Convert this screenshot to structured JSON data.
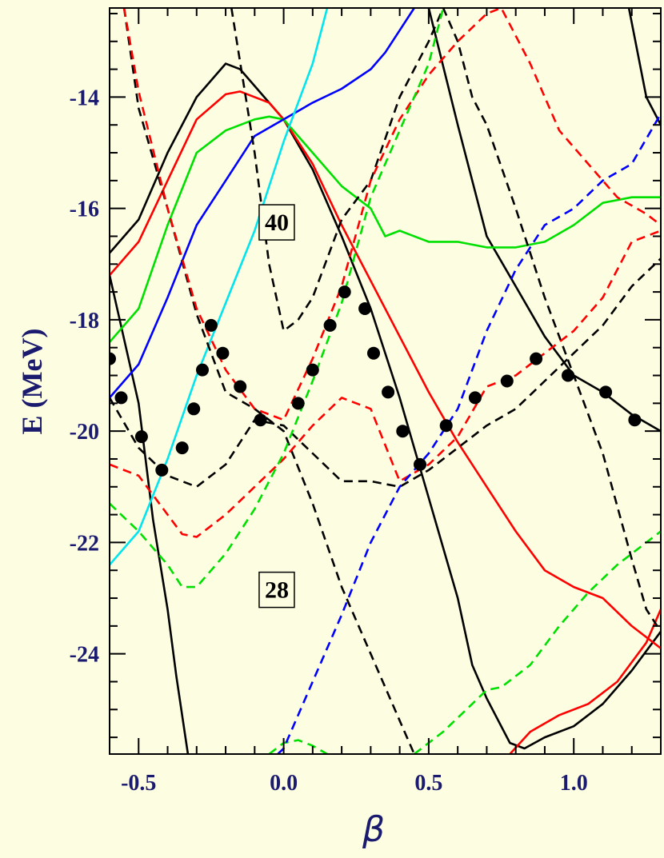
{
  "chart_data": {
    "type": "line",
    "title": "",
    "xlabel": "β",
    "ylabel": "E (MeV)",
    "xlim": [
      -0.6,
      1.3
    ],
    "ylim": [
      -25.8,
      -12.4
    ],
    "x_ticks": [
      -0.5,
      0.0,
      0.5,
      1.0
    ],
    "x_tick_labels": [
      "-0.5",
      "0.0",
      "0.5",
      "1.0"
    ],
    "y_ticks": [
      -14,
      -16,
      -18,
      -20,
      -22,
      -24
    ],
    "y_tick_labels": [
      "-14",
      "-16",
      "-18",
      "-20",
      "-22",
      "-24"
    ],
    "grid": false,
    "annotations": [
      {
        "text": "40",
        "x": -0.09,
        "y": -16.25
      },
      {
        "text": "28",
        "x": -0.09,
        "y": -22.85
      }
    ],
    "series": [
      {
        "color": "#000000",
        "dash": "solid",
        "points": [
          [
            -0.6,
            -16.8
          ],
          [
            -0.5,
            -16.2
          ],
          [
            -0.4,
            -15.0
          ],
          [
            -0.3,
            -14.0
          ],
          [
            -0.2,
            -13.4
          ],
          [
            -0.15,
            -13.5
          ],
          [
            -0.05,
            -14.1
          ],
          [
            0.0,
            -14.4
          ],
          [
            0.1,
            -15.3
          ],
          [
            0.2,
            -16.5
          ],
          [
            0.3,
            -17.8
          ],
          [
            0.4,
            -19.4
          ],
          [
            0.5,
            -21.2
          ],
          [
            0.6,
            -23.0
          ],
          [
            0.65,
            -24.2
          ],
          [
            0.7,
            -24.8
          ],
          [
            0.78,
            -25.6
          ],
          [
            0.83,
            -25.7
          ],
          [
            0.9,
            -25.5
          ],
          [
            1.0,
            -25.3
          ],
          [
            1.1,
            -24.9
          ],
          [
            1.2,
            -24.3
          ],
          [
            1.3,
            -23.6
          ]
        ]
      },
      {
        "color": "#000000",
        "dash": "solid",
        "points": [
          [
            -0.6,
            -17.2
          ],
          [
            -0.5,
            -19.5
          ],
          [
            -0.45,
            -21.6
          ],
          [
            -0.4,
            -23.2
          ],
          [
            -0.37,
            -24.4
          ],
          [
            -0.33,
            -25.8
          ]
        ]
      },
      {
        "color": "#000000",
        "dash": "solid",
        "points": [
          [
            0.5,
            -12.4
          ],
          [
            0.6,
            -14.5
          ],
          [
            0.7,
            -16.5
          ],
          [
            0.8,
            -17.4
          ],
          [
            0.9,
            -18.3
          ],
          [
            1.0,
            -19.0
          ],
          [
            1.1,
            -19.3
          ],
          [
            1.2,
            -19.7
          ],
          [
            1.3,
            -20.0
          ]
        ]
      },
      {
        "color": "#000000",
        "dash": "solid",
        "points": [
          [
            1.19,
            -12.4
          ],
          [
            1.25,
            -14.0
          ],
          [
            1.3,
            -14.5
          ]
        ]
      },
      {
        "color": "#ff0000",
        "dash": "solid",
        "points": [
          [
            -0.6,
            -17.2
          ],
          [
            -0.5,
            -16.6
          ],
          [
            -0.4,
            -15.5
          ],
          [
            -0.3,
            -14.4
          ],
          [
            -0.2,
            -13.95
          ],
          [
            -0.15,
            -13.9
          ],
          [
            -0.05,
            -14.1
          ],
          [
            0.0,
            -14.4
          ],
          [
            0.1,
            -15.2
          ],
          [
            0.2,
            -16.3
          ],
          [
            0.3,
            -17.3
          ],
          [
            0.4,
            -18.3
          ],
          [
            0.5,
            -19.3
          ],
          [
            0.6,
            -20.2
          ],
          [
            0.7,
            -21.0
          ],
          [
            0.8,
            -21.8
          ],
          [
            0.9,
            -22.5
          ],
          [
            1.0,
            -22.8
          ],
          [
            1.1,
            -23.0
          ],
          [
            1.2,
            -23.5
          ],
          [
            1.3,
            -23.9
          ]
        ]
      },
      {
        "color": "#ff0000",
        "dash": "solid",
        "points": [
          [
            0.78,
            -25.8
          ],
          [
            0.85,
            -25.4
          ],
          [
            0.95,
            -25.1
          ],
          [
            1.05,
            -24.9
          ],
          [
            1.15,
            -24.5
          ],
          [
            1.25,
            -23.8
          ],
          [
            1.3,
            -23.2
          ]
        ]
      },
      {
        "color": "#00e000",
        "dash": "solid",
        "points": [
          [
            -0.6,
            -18.4
          ],
          [
            -0.5,
            -17.8
          ],
          [
            -0.4,
            -16.3
          ],
          [
            -0.3,
            -15.0
          ],
          [
            -0.2,
            -14.6
          ],
          [
            -0.1,
            -14.4
          ],
          [
            -0.05,
            -14.35
          ],
          [
            0.0,
            -14.4
          ],
          [
            0.1,
            -15.0
          ],
          [
            0.2,
            -15.6
          ],
          [
            0.3,
            -16.0
          ],
          [
            0.35,
            -16.5
          ],
          [
            0.4,
            -16.4
          ],
          [
            0.5,
            -16.6
          ],
          [
            0.6,
            -16.6
          ],
          [
            0.7,
            -16.7
          ],
          [
            0.8,
            -16.7
          ],
          [
            0.9,
            -16.6
          ],
          [
            1.0,
            -16.3
          ],
          [
            1.1,
            -15.9
          ],
          [
            1.2,
            -15.8
          ],
          [
            1.3,
            -15.8
          ]
        ]
      },
      {
        "color": "#0000ff",
        "dash": "solid",
        "points": [
          [
            -0.6,
            -19.4
          ],
          [
            -0.5,
            -18.8
          ],
          [
            -0.4,
            -17.6
          ],
          [
            -0.3,
            -16.3
          ],
          [
            -0.2,
            -15.5
          ],
          [
            -0.1,
            -14.7
          ],
          [
            0.0,
            -14.4
          ],
          [
            0.1,
            -14.1
          ],
          [
            0.2,
            -13.85
          ],
          [
            0.3,
            -13.5
          ],
          [
            0.35,
            -13.2
          ],
          [
            0.4,
            -12.8
          ],
          [
            0.45,
            -12.4
          ]
        ]
      },
      {
        "color": "#00e5ee",
        "dash": "solid",
        "points": [
          [
            -0.6,
            -22.4
          ],
          [
            -0.5,
            -21.8
          ],
          [
            -0.4,
            -20.5
          ],
          [
            -0.3,
            -19.0
          ],
          [
            -0.2,
            -17.7
          ],
          [
            -0.1,
            -16.4
          ],
          [
            0.0,
            -14.8
          ],
          [
            0.1,
            -13.4
          ],
          [
            0.15,
            -12.4
          ]
        ]
      },
      {
        "color": "#000000",
        "dash": "dashed",
        "points": [
          [
            -0.6,
            -19.4
          ],
          [
            -0.5,
            -20.3
          ],
          [
            -0.4,
            -20.8
          ],
          [
            -0.3,
            -21.0
          ],
          [
            -0.2,
            -20.6
          ],
          [
            -0.1,
            -19.8
          ],
          [
            0.0,
            -19.9
          ],
          [
            0.1,
            -20.4
          ],
          [
            0.2,
            -20.9
          ],
          [
            0.3,
            -20.9
          ],
          [
            0.4,
            -21.0
          ],
          [
            0.5,
            -20.7
          ],
          [
            0.6,
            -20.3
          ],
          [
            0.7,
            -19.9
          ],
          [
            0.8,
            -19.6
          ],
          [
            0.9,
            -19.1
          ],
          [
            1.0,
            -18.6
          ],
          [
            1.1,
            -18.1
          ],
          [
            1.2,
            -17.4
          ],
          [
            1.3,
            -16.9
          ]
        ]
      },
      {
        "color": "#000000",
        "dash": "dashed",
        "points": [
          [
            -0.55,
            -12.4
          ],
          [
            -0.5,
            -14.2
          ],
          [
            -0.4,
            -16.0
          ],
          [
            -0.3,
            -17.9
          ],
          [
            -0.2,
            -19.3
          ],
          [
            -0.1,
            -19.6
          ],
          [
            0.0,
            -20.0
          ],
          [
            0.1,
            -21.3
          ],
          [
            0.2,
            -22.8
          ],
          [
            0.3,
            -24.0
          ],
          [
            0.4,
            -25.2
          ],
          [
            0.45,
            -25.8
          ]
        ]
      },
      {
        "color": "#000000",
        "dash": "dashed",
        "points": [
          [
            -0.18,
            -12.4
          ],
          [
            -0.1,
            -15.0
          ],
          [
            -0.05,
            -17.0
          ],
          [
            0.0,
            -18.2
          ],
          [
            0.05,
            -18.0
          ],
          [
            0.1,
            -17.6
          ],
          [
            0.2,
            -16.2
          ],
          [
            0.3,
            -15.5
          ],
          [
            0.4,
            -14.0
          ],
          [
            0.5,
            -13.0
          ],
          [
            0.55,
            -12.4
          ],
          [
            0.6,
            -13.0
          ],
          [
            0.65,
            -14.0
          ],
          [
            0.7,
            -14.5
          ],
          [
            0.8,
            -16.0
          ],
          [
            0.9,
            -17.6
          ],
          [
            1.0,
            -19.0
          ],
          [
            1.1,
            -20.4
          ],
          [
            1.2,
            -22.3
          ],
          [
            1.25,
            -23.2
          ],
          [
            1.3,
            -23.6
          ]
        ]
      },
      {
        "color": "#ff0000",
        "dash": "dashed",
        "points": [
          [
            -0.6,
            -20.6
          ],
          [
            -0.5,
            -20.8
          ],
          [
            -0.4,
            -21.5
          ],
          [
            -0.35,
            -21.85
          ],
          [
            -0.3,
            -21.9
          ],
          [
            -0.2,
            -21.5
          ],
          [
            -0.1,
            -21.0
          ],
          [
            0.0,
            -20.5
          ],
          [
            0.1,
            -19.9
          ],
          [
            0.2,
            -19.4
          ],
          [
            0.3,
            -19.6
          ],
          [
            0.4,
            -20.9
          ],
          [
            0.5,
            -20.6
          ],
          [
            0.6,
            -20.1
          ],
          [
            0.7,
            -19.2
          ],
          [
            0.8,
            -19.0
          ],
          [
            0.9,
            -18.6
          ],
          [
            1.0,
            -18.2
          ],
          [
            1.1,
            -17.6
          ],
          [
            1.2,
            -16.6
          ],
          [
            1.3,
            -16.4
          ]
        ]
      },
      {
        "color": "#ff0000",
        "dash": "dashed",
        "points": [
          [
            -0.55,
            -12.4
          ],
          [
            -0.5,
            -13.9
          ],
          [
            -0.4,
            -16.0
          ],
          [
            -0.3,
            -17.8
          ],
          [
            -0.2,
            -18.9
          ],
          [
            -0.1,
            -19.6
          ],
          [
            0.0,
            -19.8
          ],
          [
            0.1,
            -18.7
          ],
          [
            0.2,
            -17.4
          ],
          [
            0.3,
            -15.5
          ],
          [
            0.4,
            -14.4
          ],
          [
            0.5,
            -13.6
          ],
          [
            0.6,
            -13.0
          ],
          [
            0.7,
            -12.5
          ],
          [
            0.75,
            -12.4
          ],
          [
            0.85,
            -13.4
          ],
          [
            0.95,
            -14.6
          ],
          [
            1.05,
            -15.2
          ],
          [
            1.15,
            -15.8
          ],
          [
            1.25,
            -16.1
          ],
          [
            1.3,
            -16.3
          ]
        ]
      },
      {
        "color": "#00e000",
        "dash": "dashed",
        "points": [
          [
            -0.6,
            -21.3
          ],
          [
            -0.5,
            -21.8
          ],
          [
            -0.4,
            -22.4
          ],
          [
            -0.35,
            -22.8
          ],
          [
            -0.3,
            -22.8
          ],
          [
            -0.2,
            -22.2
          ],
          [
            -0.1,
            -21.4
          ],
          [
            0.0,
            -20.4
          ],
          [
            0.1,
            -19.1
          ],
          [
            0.2,
            -17.7
          ],
          [
            0.3,
            -15.8
          ],
          [
            0.4,
            -14.6
          ],
          [
            0.5,
            -13.4
          ],
          [
            0.55,
            -12.4
          ]
        ]
      },
      {
        "color": "#00e000",
        "dash": "dashed",
        "points": [
          [
            0.45,
            -25.8
          ],
          [
            0.55,
            -25.4
          ],
          [
            0.65,
            -24.9
          ],
          [
            0.7,
            -24.65
          ],
          [
            0.75,
            -24.6
          ],
          [
            0.85,
            -24.2
          ],
          [
            0.95,
            -23.5
          ],
          [
            1.05,
            -22.9
          ],
          [
            1.15,
            -22.4
          ],
          [
            1.25,
            -22.0
          ],
          [
            1.3,
            -21.8
          ]
        ]
      },
      {
        "color": "#00e000",
        "dash": "dashed",
        "points": [
          [
            -0.05,
            -25.8
          ],
          [
            0.0,
            -25.6
          ],
          [
            0.05,
            -25.55
          ],
          [
            0.1,
            -25.65
          ],
          [
            0.15,
            -25.8
          ]
        ]
      },
      {
        "color": "#0000ff",
        "dash": "dashed",
        "points": [
          [
            -0.02,
            -25.8
          ],
          [
            0.0,
            -25.7
          ],
          [
            0.1,
            -24.5
          ],
          [
            0.2,
            -23.3
          ],
          [
            0.3,
            -22.0
          ],
          [
            0.4,
            -21.0
          ],
          [
            0.5,
            -20.4
          ],
          [
            0.6,
            -19.6
          ],
          [
            0.7,
            -18.2
          ],
          [
            0.8,
            -17.1
          ],
          [
            0.9,
            -16.3
          ],
          [
            1.0,
            -16.0
          ],
          [
            1.1,
            -15.5
          ],
          [
            1.2,
            -15.2
          ],
          [
            1.3,
            -14.3
          ]
        ]
      }
    ],
    "markers": [
      [
        -0.6,
        -18.7
      ],
      [
        -0.56,
        -19.4
      ],
      [
        -0.49,
        -20.1
      ],
      [
        -0.42,
        -20.7
      ],
      [
        -0.35,
        -20.3
      ],
      [
        -0.31,
        -19.6
      ],
      [
        -0.28,
        -18.9
      ],
      [
        -0.25,
        -18.1
      ],
      [
        -0.21,
        -18.6
      ],
      [
        -0.15,
        -19.2
      ],
      [
        -0.08,
        -19.8
      ],
      [
        0.05,
        -19.5
      ],
      [
        0.1,
        -18.9
      ],
      [
        0.16,
        -18.1
      ],
      [
        0.21,
        -17.5
      ],
      [
        0.28,
        -17.8
      ],
      [
        0.31,
        -18.6
      ],
      [
        0.36,
        -19.3
      ],
      [
        0.41,
        -20.0
      ],
      [
        0.47,
        -20.6
      ],
      [
        0.56,
        -19.9
      ],
      [
        0.66,
        -19.4
      ],
      [
        0.77,
        -19.1
      ],
      [
        0.87,
        -18.7
      ],
      [
        0.98,
        -19.0
      ],
      [
        1.11,
        -19.3
      ],
      [
        1.21,
        -19.8
      ]
    ]
  }
}
